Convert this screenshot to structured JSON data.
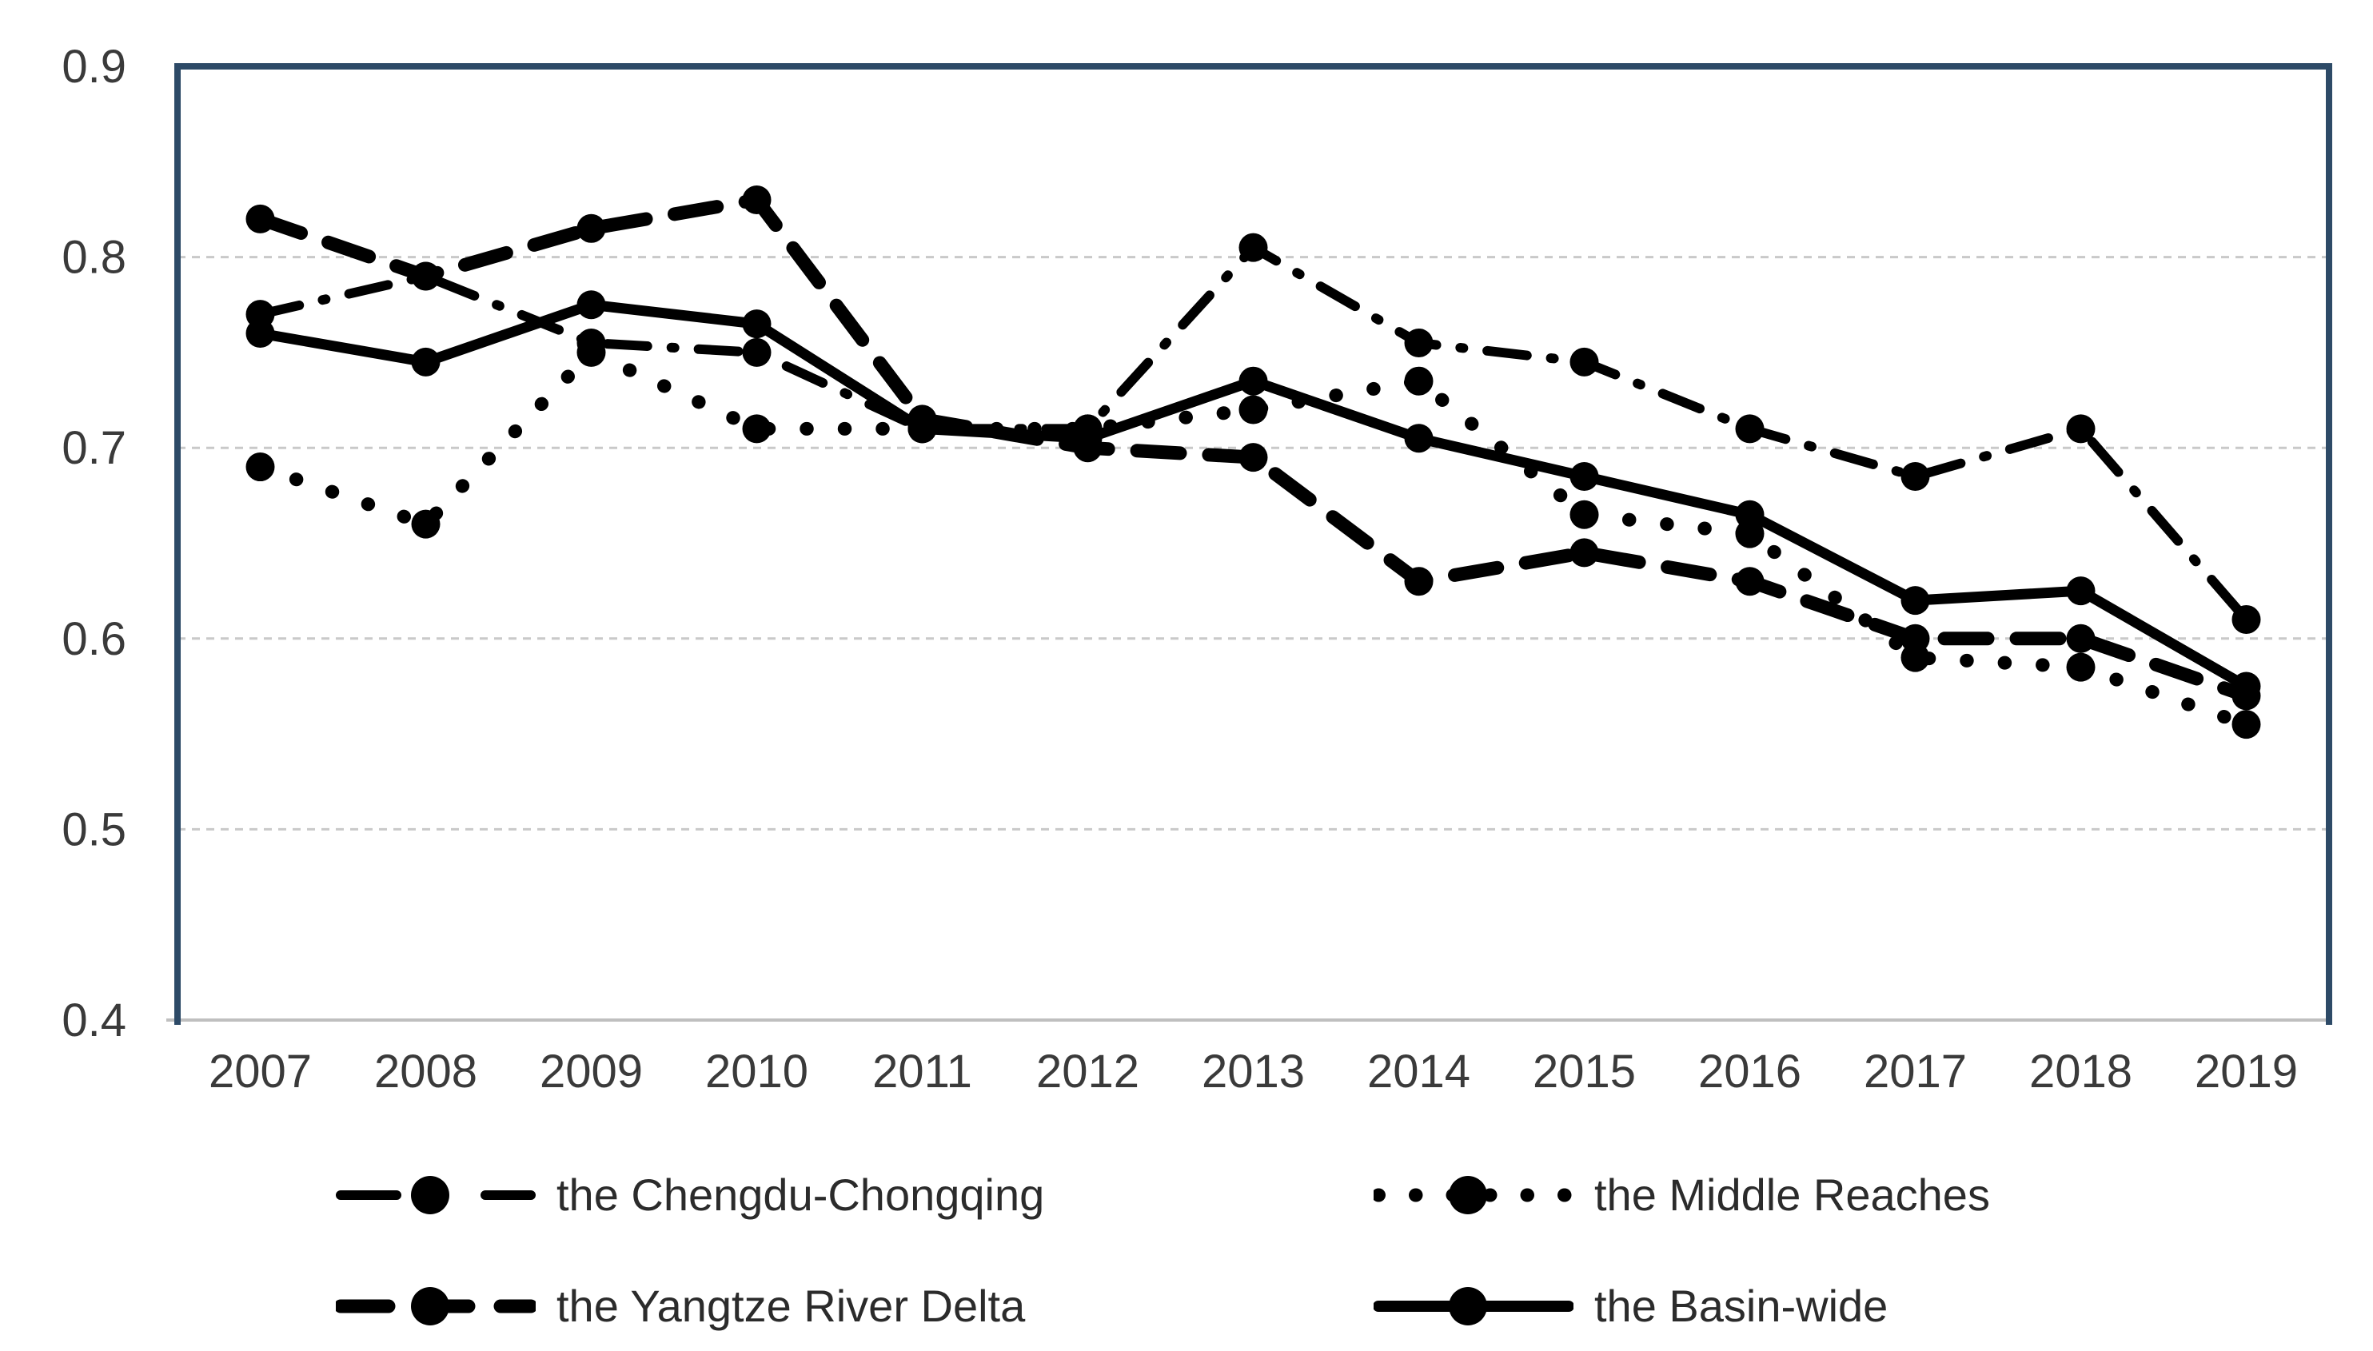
{
  "chart_data": {
    "type": "line",
    "title": "",
    "xlabel": "",
    "ylabel": "",
    "x": [
      2007,
      2008,
      2009,
      2010,
      2011,
      2012,
      2013,
      2014,
      2015,
      2016,
      2017,
      2018,
      2019
    ],
    "ylim": [
      0.4,
      0.9
    ],
    "yticks": [
      0.9,
      0.8,
      0.7,
      0.6,
      0.5,
      0.4
    ],
    "ytick_labels": [
      "0.9",
      "0.8",
      "0.7",
      "0.6",
      "0.5",
      "0.4"
    ],
    "grid": "horizontal-dotted",
    "legend_position": "bottom-two-rows",
    "series": [
      {
        "name": "the Chengdu-Chongqing",
        "line_style": "dash-dot",
        "marker": "filled-circle",
        "color": "#000000",
        "values": [
          0.77,
          0.79,
          0.755,
          0.75,
          0.71,
          0.71,
          0.805,
          0.755,
          0.745,
          0.71,
          0.685,
          0.71,
          0.61
        ]
      },
      {
        "name": "the Middle Reaches",
        "line_style": "dotted",
        "marker": "filled-circle",
        "color": "#000000",
        "values": [
          0.69,
          0.66,
          0.75,
          0.71,
          0.71,
          0.71,
          0.72,
          0.735,
          0.665,
          0.655,
          0.59,
          0.585,
          0.555
        ]
      },
      {
        "name": "the Yangtze River Delta",
        "line_style": "dashed",
        "marker": "filled-circle",
        "color": "#000000",
        "values": [
          0.82,
          0.79,
          0.815,
          0.83,
          0.715,
          0.7,
          0.695,
          0.63,
          0.645,
          0.63,
          0.6,
          0.6,
          0.57
        ]
      },
      {
        "name": "the Basin-wide",
        "line_style": "solid",
        "marker": "filled-circle",
        "color": "#000000",
        "values": [
          0.76,
          0.745,
          0.775,
          0.765,
          0.71,
          0.705,
          0.735,
          0.705,
          0.685,
          0.665,
          0.62,
          0.625,
          0.575
        ]
      }
    ],
    "colors": {
      "series": "#000000",
      "plot_border": "#2d4a67",
      "gridline": "#c9c9c9",
      "bottom_axis": "#bfbfbf",
      "tick_text": "#3a3a3a",
      "legend_text": "#2b2b2b",
      "background": "#ffffff"
    }
  }
}
